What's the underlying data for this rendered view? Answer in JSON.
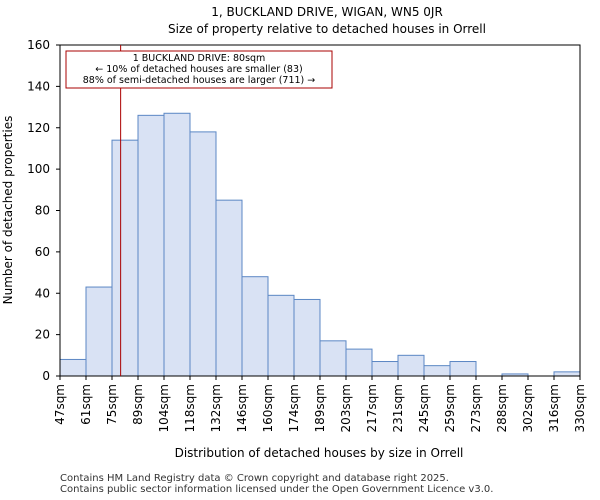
{
  "chart_data": {
    "type": "bar",
    "title_line1": "1, BUCKLAND DRIVE, WIGAN, WN5 0JR",
    "title_line2": "Size of property relative to detached houses in Orrell",
    "xlabel": "Distribution of detached houses by size in Orrell",
    "ylabel": "Number of detached properties",
    "ylim": [
      0,
      160
    ],
    "yticks": [
      0,
      20,
      40,
      60,
      80,
      100,
      120,
      140,
      160
    ],
    "bin_edges": [
      47,
      61,
      75,
      89,
      104,
      118,
      132,
      146,
      160,
      174,
      189,
      203,
      217,
      231,
      245,
      259,
      273,
      288,
      302,
      316,
      330
    ],
    "tick_labels": [
      "47sqm",
      "61sqm",
      "75sqm",
      "89sqm",
      "104sqm",
      "118sqm",
      "132sqm",
      "146sqm",
      "160sqm",
      "174sqm",
      "189sqm",
      "203sqm",
      "217sqm",
      "231sqm",
      "245sqm",
      "259sqm",
      "273sqm",
      "288sqm",
      "302sqm",
      "316sqm",
      "330sqm"
    ],
    "values": [
      8,
      43,
      114,
      126,
      127,
      118,
      85,
      48,
      39,
      37,
      17,
      13,
      7,
      10,
      5,
      7,
      0,
      1,
      0,
      2
    ],
    "marker": {
      "value": 80,
      "color": "#aa0000"
    },
    "annotation": {
      "line1": "1 BUCKLAND DRIVE: 80sqm",
      "line2": "← 10% of detached houses are smaller (83)",
      "line3": "88% of semi-detached houses are larger (711) →"
    },
    "bar_fill": "#d9e2f4",
    "bar_edge": "#5b87c4"
  },
  "footer": {
    "line1": "Contains HM Land Registry data © Crown copyright and database right 2025.",
    "line2": "Contains public sector information licensed under the Open Government Licence v3.0."
  }
}
